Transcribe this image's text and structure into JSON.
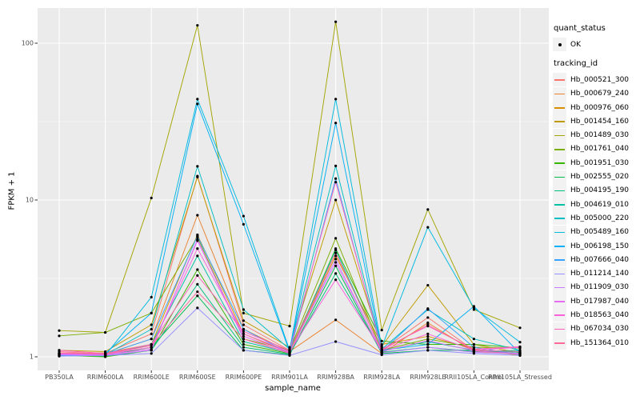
{
  "chart_data": {
    "type": "line",
    "title": "",
    "xlabel": "sample_name",
    "ylabel": "FPKM + 1",
    "y_scale": "log10",
    "ylim": [
      0.82,
      168
    ],
    "y_ticks": [
      1,
      10,
      100
    ],
    "y_minor_gridlines": [
      3.1623,
      31.623
    ],
    "grid": "on",
    "panel_bg": "#EBEBEB",
    "grid_color": "#FFFFFF",
    "point_color": "#000000",
    "legend_position": "right",
    "legend": {
      "quant_status_title": "quant_status",
      "ok_label": "OK",
      "tracking_title": "tracking_id"
    },
    "categories": [
      "PB350LA",
      "RRIM600LA",
      "RRIM600LE",
      "RRIM600SE",
      "RRIM600PE",
      "RRIM901LA",
      "RRIM928BA",
      "RRIM928LA",
      "RRIM928LE",
      "RRII105LA_Control",
      "RRII105LA_Stressed"
    ],
    "series": [
      {
        "name": "Hb_000521_300",
        "color": "#F8766D",
        "values": [
          1.06,
          1.05,
          1.4,
          14.2,
          1.6,
          1.1,
          4.6,
          1.1,
          1.78,
          1.1,
          1.05
        ]
      },
      {
        "name": "Hb_000679_240",
        "color": "#EA8331",
        "values": [
          1.05,
          1.04,
          1.3,
          8.0,
          1.5,
          1.08,
          1.72,
          1.05,
          1.65,
          1.08,
          1.04
        ]
      },
      {
        "name": "Hb_000976_060",
        "color": "#D89000",
        "values": [
          1.04,
          1.06,
          1.2,
          6.0,
          1.4,
          1.06,
          4.4,
          1.2,
          1.35,
          1.12,
          1.02
        ]
      },
      {
        "name": "Hb_001454_160",
        "color": "#C09B00",
        "values": [
          1.1,
          1.08,
          1.6,
          14.0,
          1.7,
          1.15,
          10.0,
          1.17,
          2.86,
          1.2,
          1.06
        ]
      },
      {
        "name": "Hb_001489_030",
        "color": "#A3A500",
        "values": [
          1.47,
          1.43,
          10.3,
          130,
          1.9,
          1.57,
          137,
          1.48,
          8.7,
          2.0,
          1.53
        ]
      },
      {
        "name": "Hb_001761_040",
        "color": "#7CAE00",
        "values": [
          1.36,
          1.43,
          1.9,
          5.8,
          1.3,
          1.1,
          5.7,
          1.1,
          1.3,
          1.15,
          1.14
        ]
      },
      {
        "name": "Hb_001951_030",
        "color": "#39B600",
        "values": [
          1.02,
          1.0,
          1.1,
          3.6,
          1.2,
          1.05,
          4.9,
          1.26,
          1.2,
          1.2,
          1.14
        ]
      },
      {
        "name": "Hb_002555_020",
        "color": "#00BB4E",
        "values": [
          1.01,
          1.02,
          1.15,
          2.45,
          1.1,
          1.03,
          3.8,
          1.05,
          1.1,
          1.1,
          1.05
        ]
      },
      {
        "name": "Hb_004195_190",
        "color": "#00BF7D",
        "values": [
          1.03,
          1.01,
          1.1,
          2.9,
          1.15,
          1.04,
          3.4,
          1.07,
          1.15,
          1.08,
          1.1
        ]
      },
      {
        "name": "Hb_004619_010",
        "color": "#00C1A3",
        "values": [
          1.02,
          1.03,
          1.2,
          4.4,
          1.25,
          1.06,
          4.8,
          1.09,
          1.25,
          1.1,
          1.07
        ]
      },
      {
        "name": "Hb_005000_220",
        "color": "#00BFC4",
        "values": [
          1.04,
          1.03,
          1.5,
          16.4,
          2.0,
          1.12,
          16.5,
          1.12,
          2.0,
          1.3,
          1.1
        ]
      },
      {
        "name": "Hb_005489_160",
        "color": "#00BAE0",
        "values": [
          1.05,
          1.02,
          2.4,
          44.0,
          7.9,
          1.1,
          44.0,
          1.15,
          6.7,
          2.05,
          1.24
        ]
      },
      {
        "name": "Hb_006198_150",
        "color": "#00B0F6",
        "values": [
          1.03,
          1.05,
          1.9,
          41.0,
          7.0,
          1.08,
          31.0,
          1.1,
          1.2,
          2.1,
          1.05
        ]
      },
      {
        "name": "Hb_007666_040",
        "color": "#35A2FF",
        "values": [
          1.02,
          1.04,
          1.3,
          5.9,
          1.5,
          1.05,
          13.7,
          1.08,
          2.03,
          1.15,
          1.03
        ]
      },
      {
        "name": "Hb_011214_140",
        "color": "#9590FF",
        "values": [
          1.01,
          1.02,
          1.05,
          2.05,
          1.1,
          1.02,
          1.25,
          1.03,
          1.1,
          1.05,
          1.02
        ]
      },
      {
        "name": "Hb_011909_030",
        "color": "#C77CFF",
        "values": [
          1.03,
          1.02,
          1.1,
          5.6,
          1.3,
          1.05,
          4.2,
          1.06,
          1.15,
          1.07,
          1.04
        ]
      },
      {
        "name": "Hb_017987_040",
        "color": "#E76BF3",
        "values": [
          1.04,
          1.03,
          1.12,
          5.5,
          1.35,
          1.07,
          4.0,
          1.08,
          1.27,
          1.09,
          1.05
        ]
      },
      {
        "name": "Hb_018563_040",
        "color": "#FA62DB",
        "values": [
          1.05,
          1.04,
          1.15,
          4.9,
          1.4,
          1.08,
          3.1,
          1.1,
          1.4,
          1.1,
          1.15
        ]
      },
      {
        "name": "Hb_067034_030",
        "color": "#FF62BC",
        "values": [
          1.1,
          1.05,
          1.2,
          3.3,
          1.45,
          1.1,
          13.0,
          1.12,
          1.57,
          1.12,
          1.16
        ]
      },
      {
        "name": "Hb_151364_010",
        "color": "#FF6A98",
        "values": [
          1.08,
          1.04,
          1.18,
          2.6,
          1.3,
          1.06,
          4.6,
          1.1,
          1.6,
          1.1,
          1.08
        ]
      }
    ]
  }
}
